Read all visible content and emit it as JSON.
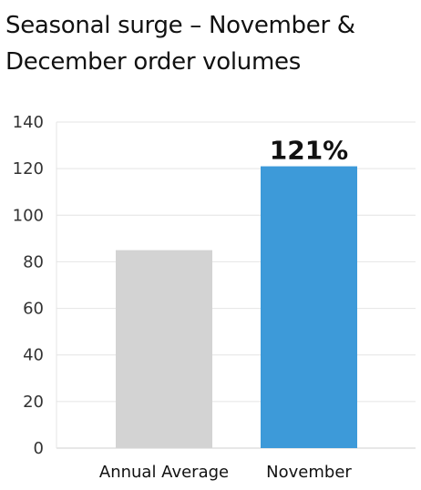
{
  "chart_data": {
    "type": "bar",
    "title_lines": [
      "Seasonal surge – November &",
      "December order volumes"
    ],
    "categories": [
      "Annual Average",
      "November"
    ],
    "values": [
      85,
      121
    ],
    "data_labels": [
      "",
      "121%"
    ],
    "colors": [
      "#d3d3d3",
      "#3d9ad9"
    ],
    "xlabel": "",
    "ylabel": "",
    "ylim": [
      0,
      140
    ],
    "yticks": [
      0,
      20,
      40,
      60,
      80,
      100,
      120,
      140
    ],
    "grid": true,
    "legend": "none"
  }
}
